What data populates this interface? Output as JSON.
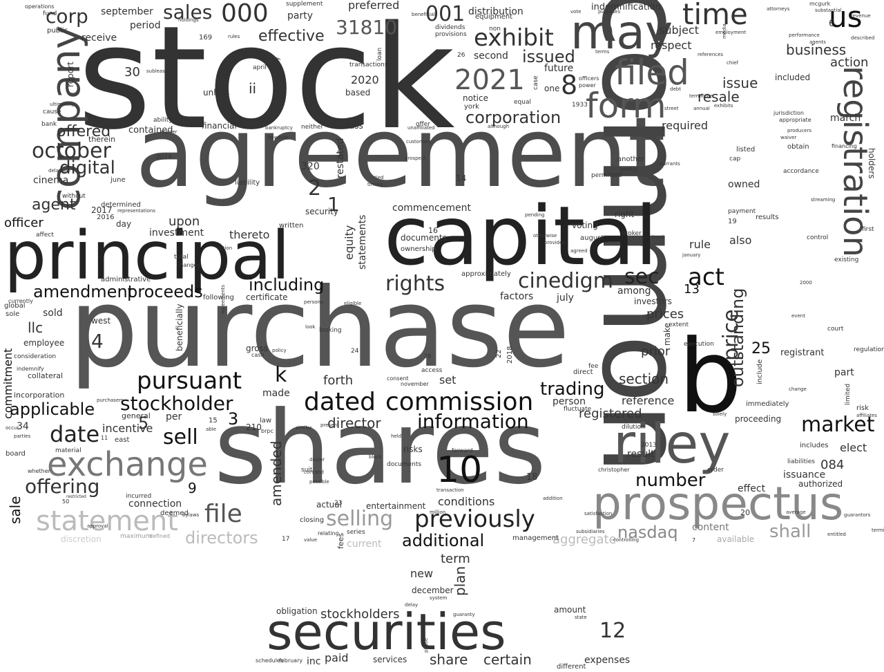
{
  "words": [
    "stock",
    "purchase",
    "agreement",
    "common",
    "shares",
    "capital",
    "principal",
    "securities",
    "b",
    "prospectus",
    "company",
    "riley",
    "may",
    "registration",
    "exchange",
    "form",
    "filed",
    "statement",
    "10",
    "time",
    "us",
    "dated",
    "commission",
    "stockholder",
    "pursuant",
    "previously",
    "exhibit",
    "corporation",
    "market",
    "selling",
    "rights",
    "cinedigm",
    "act",
    "date",
    "sec",
    "price",
    "file",
    "information",
    "number",
    "offering",
    "october",
    "digital",
    "sales",
    "000",
    "001",
    "2021",
    "31810",
    "8",
    "trading",
    "sell",
    "directors",
    "shall",
    "nasdaq",
    "additional",
    "amendment",
    "proceeds",
    "including",
    "outstanding",
    "aggregate",
    "issued",
    "offered",
    "agent",
    "officer",
    "applicable",
    "commitment",
    "sale",
    "amended",
    "plan",
    "dated",
    "k",
    "4",
    "5",
    "2",
    "1",
    "3",
    "25",
    "13",
    "9",
    "12",
    "corp",
    "effective",
    "resale",
    "issue",
    "business",
    "action",
    "required",
    "march",
    "holders",
    "owned",
    "also",
    "rule",
    "elect",
    "part",
    "risk",
    "084",
    "issuance",
    "authorized",
    "effect",
    "result",
    "registered",
    "reference",
    "section",
    "director",
    "conditions",
    "connection",
    "deemed",
    "term",
    "new",
    "december",
    "obligation",
    "stockholders",
    "amount",
    "paid",
    "inc",
    "services",
    "share",
    "certain",
    "expenses",
    "different",
    "equity",
    "statements",
    "commencement",
    "security",
    "upon",
    "made",
    "per",
    "incentive",
    "general",
    "material",
    "board",
    "llc",
    "sold",
    "employee",
    "collateral",
    "incorporation",
    "consideration",
    "indemnify",
    "sole",
    "global",
    "currently",
    "administrative",
    "affect",
    "investment",
    "thereto",
    "documents",
    "ownership",
    "approximately",
    "certificate",
    "following",
    "west",
    "east",
    "cinema",
    "june",
    "2017",
    "2016",
    "day",
    "receive",
    "september",
    "period",
    "30",
    "report",
    "fund",
    "public",
    "operations",
    "party",
    "preferred",
    "supplement",
    "indemnification",
    "distribution",
    "equipment",
    "non",
    "dividends",
    "provisions",
    "second",
    "one",
    "future",
    "notice",
    "york",
    "1933",
    "officers",
    "power",
    "case",
    "equal",
    "subject",
    "respect",
    "included",
    "jurisdiction",
    "appropriate",
    "obtain",
    "financing",
    "accordance",
    "listed",
    "cap",
    "permitted",
    "payment",
    "voting",
    "right",
    "august",
    "broker",
    "results",
    "control",
    "existing",
    "first",
    "registrant",
    "include",
    "change",
    "immediately",
    "proceeding",
    "includes",
    "liabilities",
    "order",
    "christopher",
    "2013",
    "dilution",
    "make",
    "extent",
    "execution",
    "limited",
    "regulation",
    "court",
    "prior",
    "factors",
    "july",
    "among",
    "investors",
    "prices",
    "direct",
    "fee",
    "person",
    "fluctuate",
    "forth",
    "set",
    "access",
    "consent",
    "november",
    "documents",
    "risks",
    "forward",
    "transaction",
    "entertainment",
    "actual",
    "closing",
    "relating",
    "series",
    "current",
    "content",
    "available",
    "discretion",
    "maximum",
    "defined",
    "2020",
    "2018",
    "2019",
    "based",
    "transactions",
    "loan",
    "april",
    "necessary",
    "ii",
    "unless",
    "financial",
    "bankruptcy",
    "neither",
    "class",
    "offer",
    "ability",
    "master",
    "therein",
    "contained",
    "determined",
    "liability",
    "bank",
    "cause",
    "without",
    "representations",
    "ultimately",
    "delaware",
    "incurred",
    "bylaws",
    "restricted",
    "beneficially",
    "gross",
    "cash",
    "policy",
    "look",
    "looking",
    "written",
    "total",
    "changes",
    "option",
    "restated",
    "fees",
    "law",
    "brpc",
    "suit",
    "dealer",
    "value",
    "14",
    "16",
    "19",
    "20",
    "23",
    "24",
    "26",
    "28",
    "320",
    "210",
    "15",
    "11",
    "22",
    "17",
    "18",
    "6",
    "7",
    "34",
    "50",
    "169",
    "rules",
    "holdings",
    "purposes",
    "vote",
    "mcgurk",
    "substantial",
    "attorneys",
    "beneficial",
    "described",
    "media",
    "terms",
    "employment",
    "chief",
    "references",
    "performance",
    "agents",
    "revenue",
    "producers",
    "waiver",
    "however",
    "another",
    "hereby",
    "warrants",
    "event",
    "2000",
    "streaming",
    "whether",
    "occur",
    "parties",
    "purchasers",
    "present",
    "phase",
    "system",
    "guaranty",
    "february",
    "schedules",
    "million",
    "state",
    "addition",
    "solely",
    "average",
    "guarantors",
    "satisfaction",
    "controlling",
    "termination",
    "entitled",
    "delay",
    "block",
    "held",
    "cortland",
    "possible",
    "similar",
    "able",
    "management",
    "subsidiaries",
    "otherwise",
    "provides",
    "agreed",
    "legal",
    "pending",
    "street",
    "annual",
    "exhibits",
    "debt",
    "although",
    "january",
    "terminate",
    "prospect",
    "customary",
    "unaffiliated",
    "tied",
    "timing",
    "persons",
    "eligible",
    "agreements",
    "affiliates",
    "sublease",
    "approval",
    "related",
    "lenders",
    "page"
  ]
}
